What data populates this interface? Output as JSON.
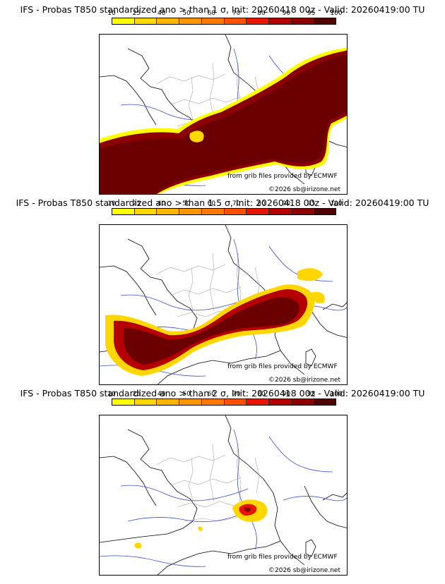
{
  "colorbar": {
    "ticks": [
      "10",
      "25",
      "40",
      "50",
      "60",
      "70",
      "80",
      "90",
      "95",
      "100"
    ],
    "colors": [
      "#ffff00",
      "#ffd700",
      "#ffb400",
      "#ff9600",
      "#ff7800",
      "#ff5000",
      "#e61400",
      "#b40000",
      "#8c0000",
      "#500000"
    ]
  },
  "panels": [
    {
      "title": "IFS - Probas T850  standardized ano > than 1 σ, Init: 20260418 00z - Valid: 20260419:00 TU",
      "credit1": "from grib files provided by ECMWF",
      "credit2": "©2026 sb@irizone.net"
    },
    {
      "title": "IFS - Probas T850  standardized ano > than 1.5 σ, Init: 20260418 00z - Valid: 20260419:00 TU",
      "credit1": "from grib files provided by ECMWF",
      "credit2": "©2026 sb@irizone.net"
    },
    {
      "title": "IFS - Probas T850  standardized ano > than 2 σ, Init: 20260418 00z - Valid: 20260419:00 TU",
      "credit1": "from grib files provided by ECMWF",
      "credit2": "©2026 sb@irizone.net"
    }
  ]
}
